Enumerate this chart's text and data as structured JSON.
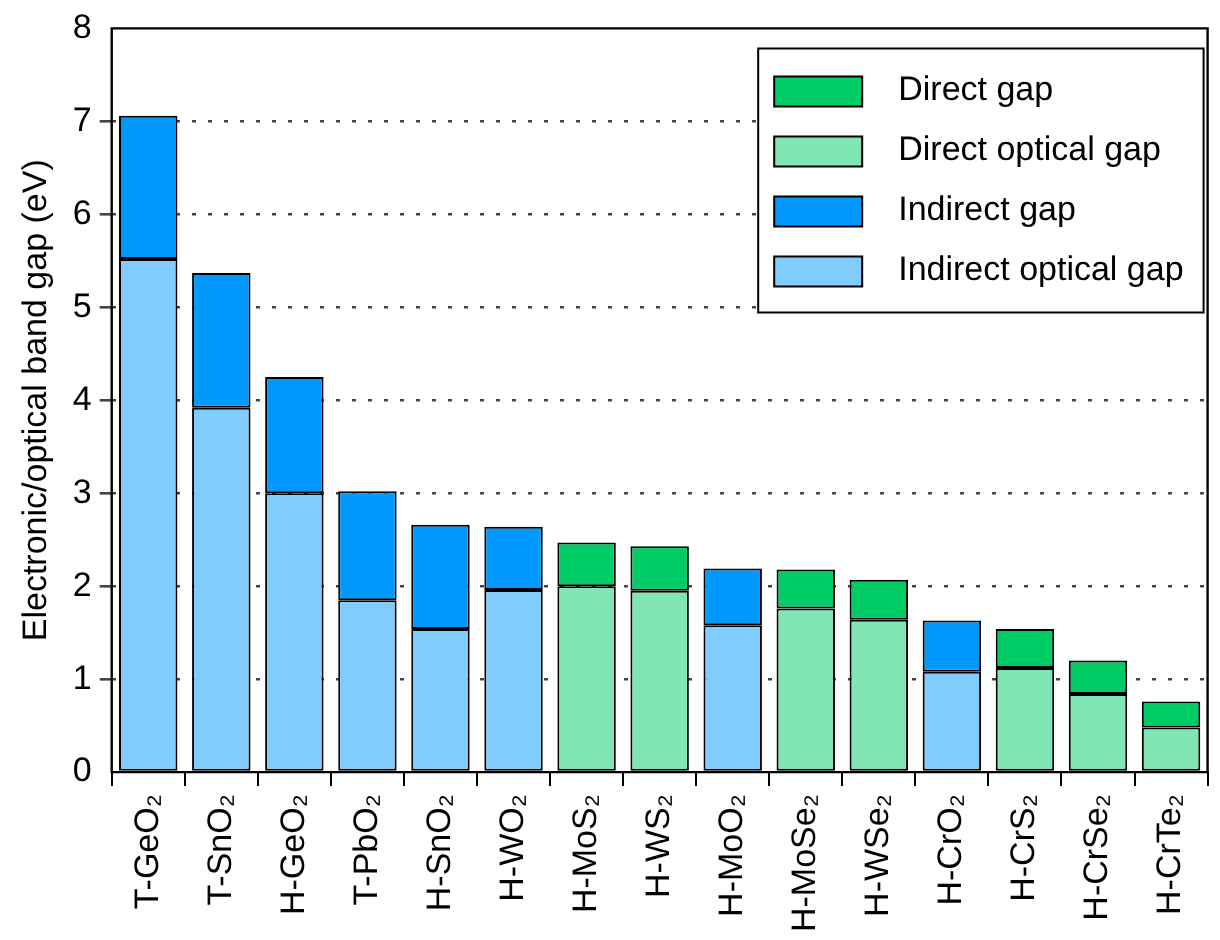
{
  "chart_data": {
    "type": "bar",
    "stacked": true,
    "ylabel": "Electronic/optical band gap (eV)",
    "categories": [
      "T-GeO₂",
      "T-SnO₂",
      "H-GeO₂",
      "T-PbO₂",
      "H-SnO₂",
      "H-WO₂",
      "H-MoS₂",
      "H-WS₂",
      "H-MoO₂",
      "H-MoSe₂",
      "H-WSe₂",
      "H-CrO₂",
      "H-CrS₂",
      "H-CrSe₂",
      "H-CrTe₂"
    ],
    "series": [
      {
        "name": "Indirect optical gap",
        "color": "#80ccff",
        "values": [
          5.52,
          3.92,
          3.0,
          1.85,
          1.54,
          1.96,
          null,
          null,
          1.58,
          null,
          null,
          1.08,
          null,
          null,
          null
        ]
      },
      {
        "name": "Indirect gap",
        "color": "#0099ff",
        "values": [
          1.54,
          1.45,
          1.25,
          1.17,
          1.12,
          0.68,
          null,
          null,
          0.61,
          null,
          null,
          0.55,
          null,
          null,
          null
        ]
      },
      {
        "name": "Direct optical gap",
        "color": "#80e6b3",
        "values": [
          null,
          null,
          null,
          null,
          null,
          null,
          2.0,
          1.95,
          null,
          1.76,
          1.64,
          null,
          1.12,
          0.84,
          0.48
        ]
      },
      {
        "name": "Direct gap",
        "color": "#00cc66",
        "values": [
          null,
          null,
          null,
          null,
          null,
          null,
          0.47,
          0.48,
          null,
          0.42,
          0.43,
          null,
          0.42,
          0.36,
          0.28
        ]
      }
    ],
    "ylim": [
      0,
      8
    ],
    "yticks": [
      0,
      1,
      2,
      3,
      4,
      5,
      6,
      7,
      8
    ],
    "grid": "y",
    "legend": "top right"
  }
}
